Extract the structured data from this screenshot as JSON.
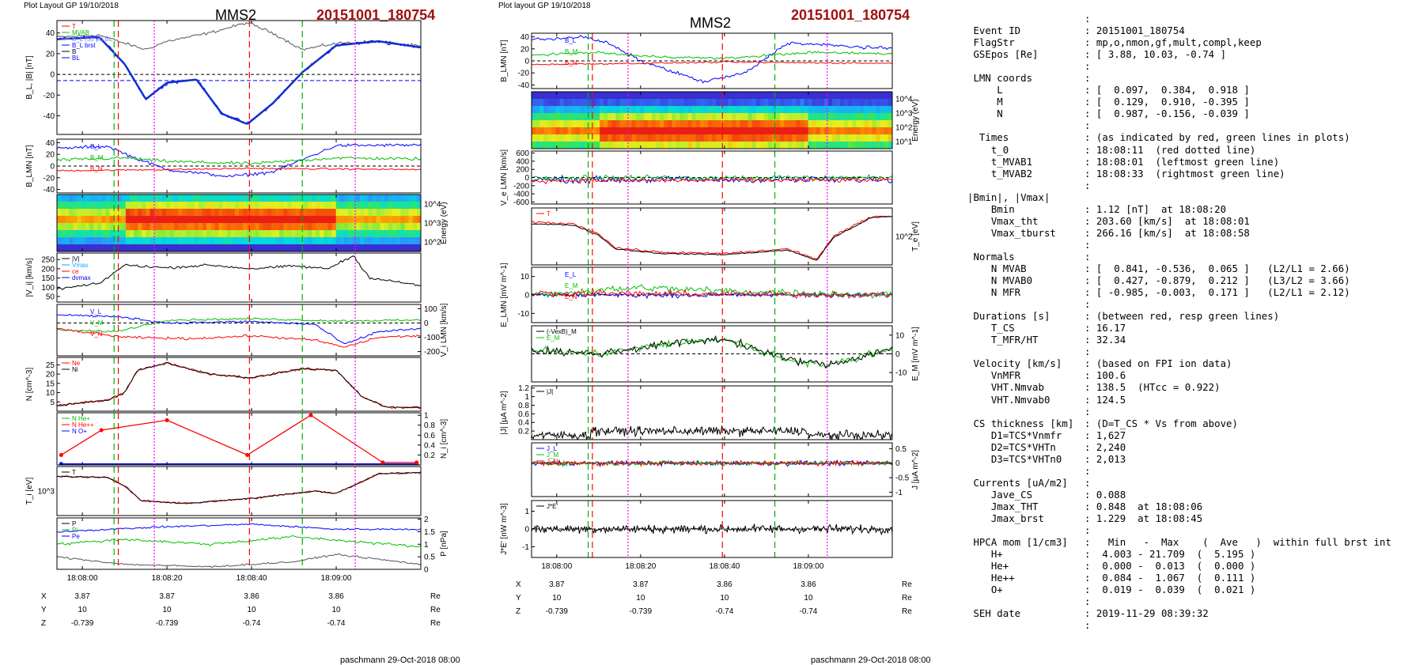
{
  "left_page": {
    "header_small": "Plot Layout GP 19/10/2018",
    "title": "MMS2",
    "event_id": "20151001_180754",
    "footer": "paschmann 29-Oct-2018 08:00"
  },
  "right_page": {
    "header_small": "Plot layout GP 19/10/2018",
    "title": "MMS2",
    "event_id": "20151001_180754",
    "footer": "paschmann 29-Oct-2018 08:00"
  },
  "time_axis": {
    "tick_times": [
      0,
      20,
      40,
      60
    ],
    "tick_labels": [
      "18:08:00",
      "18:08:20",
      "18:08:40",
      "18:09:00"
    ],
    "range_seconds_after_18_07_54": [
      -6,
      80
    ]
  },
  "position_table": {
    "rows": [
      {
        "label": "X",
        "values": [
          "3.87",
          "3.87",
          "3.86",
          "3.86"
        ],
        "unit": "Re"
      },
      {
        "label": "Y",
        "values": [
          "10",
          "10",
          "10",
          "10"
        ],
        "unit": "Re"
      },
      {
        "label": "Z",
        "values": [
          "-0.739",
          "-0.739",
          "-0.74",
          "-0.74"
        ],
        "unit": "Re"
      }
    ]
  },
  "marker_lines": {
    "red_dashed_s": [
      8.5,
      39.5
    ],
    "green_dashed_s": [
      7.5,
      52.0
    ],
    "magenta_dotted_s": [
      17.0,
      64.5
    ],
    "colors": {
      "red": "#ff0000",
      "green": "#00b000",
      "magenta": "#ff00ff"
    }
  },
  "chart_data": [
    {
      "type": "line",
      "panel": "B_L, |B|",
      "ylabel": "B_L, |B| [nT]",
      "yticks": [
        40,
        20,
        0,
        -20,
        -40
      ],
      "ylim": [
        -58,
        52
      ],
      "legend": [
        "T",
        "MVAB",
        "B_L (50 pt) BL",
        "B_L brst",
        "B",
        "BL"
      ],
      "notable": {
        "B_min": -48,
        "B_max": 52
      }
    },
    {
      "type": "line",
      "panel": "B_LMN",
      "ylabel": "B_LMN [nT]",
      "yticks": [
        40,
        20,
        0,
        -20,
        -40
      ],
      "ylim": [
        -46,
        46
      ],
      "series_labels": [
        "B_L",
        "B_M",
        "B_N"
      ]
    },
    {
      "type": "heatmap",
      "panel": "ion energy spectrogram",
      "ylabel": "Energy (eV)",
      "yticks": [
        "10^4",
        "10^3",
        "10^2"
      ]
    },
    {
      "type": "line",
      "panel": "|V_i|",
      "ylabel": "|V_i| [km/s]",
      "yticks": [
        250,
        200,
        150,
        100,
        50
      ],
      "ylim": [
        20,
        285
      ],
      "legend": [
        "|V|",
        "Vmax",
        "ce",
        "dvmax"
      ]
    },
    {
      "type": "line",
      "panel": "V_i LMN",
      "ylabel": "V_i LMN [km/s]",
      "yticks": [
        100,
        0,
        -100,
        -200
      ],
      "ylim": [
        -230,
        130
      ],
      "series_labels": [
        "V_L",
        "V_M",
        "V_N"
      ]
    },
    {
      "type": "line",
      "panel": "N",
      "ylabel": "N [cm^-3]",
      "yticks": [
        25,
        20,
        15,
        10,
        5
      ],
      "ylim": [
        0,
        29
      ],
      "legend": [
        "Ne",
        "Ni"
      ]
    },
    {
      "type": "line",
      "panel": "N_i HPCA",
      "ylabel": "N_i [cm^-3]",
      "yticks": [
        1.0,
        0.8,
        0.6,
        0.4,
        0.2
      ],
      "ylim": [
        0,
        1.05
      ],
      "legend": [
        "N He+",
        "N He++",
        "N O+"
      ],
      "series": [
        {
          "name": "N He++",
          "x": [
            -5,
            4.5,
            20,
            39,
            54,
            71,
            79
          ],
          "values": [
            0.2,
            0.7,
            0.9,
            0.2,
            1.0,
            0.05,
            0.05
          ]
        },
        {
          "name": "N O+",
          "x": [
            -5,
            79
          ],
          "values": [
            0.02,
            0.02
          ]
        },
        {
          "name": "N He+",
          "x": [
            -5,
            79
          ],
          "values": [
            0.0,
            0.0
          ]
        }
      ]
    },
    {
      "type": "line",
      "panel": "T_i",
      "ylabel": "T_i [eV]",
      "yticks": [
        "10^3"
      ],
      "legend": [
        "T"
      ]
    },
    {
      "type": "line",
      "panel": "P",
      "ylabel": "P [nPa]",
      "yticks": [
        2.0,
        1.5,
        1.0,
        0.5,
        0.0
      ],
      "ylim": [
        0,
        2.05
      ],
      "legend": [
        "P",
        "Pi",
        "Pe"
      ]
    },
    {
      "type": "line",
      "panel": "B_LMN (right)",
      "ylabel": "B_LMN [nT]",
      "yticks": [
        40,
        20,
        0,
        -20,
        -40
      ],
      "ylim": [
        -46,
        46
      ],
      "series_labels": [
        "B_L",
        "B_M",
        "B_N"
      ]
    },
    {
      "type": "heatmap",
      "panel": "electron energy spectrogram",
      "ylabel": "Energy (eV)",
      "yticks": [
        "10^4",
        "10^3",
        "10^2",
        "10^1"
      ]
    },
    {
      "type": "line",
      "panel": "V_e LMN",
      "ylabel": "V_e LMN [km/s]",
      "yticks": [
        600,
        400,
        200,
        0,
        -200,
        -400,
        -600
      ],
      "ylim": [
        -650,
        650
      ]
    },
    {
      "type": "line",
      "panel": "T_e",
      "ylabel": "T_e [eV]",
      "yticks": [
        "10^2"
      ],
      "legend": [
        "T"
      ]
    },
    {
      "type": "line",
      "panel": "E_LMN",
      "ylabel": "E_LMN [mV m^-1]",
      "yticks": [
        10,
        0,
        -10
      ],
      "ylim": [
        -15,
        15
      ],
      "series_labels": [
        "E_L",
        "E_M",
        "E_N"
      ]
    },
    {
      "type": "line",
      "panel": "E_M",
      "ylabel": "E_M [mV m^-1]",
      "yticks": [
        10,
        0,
        -10
      ],
      "ylim": [
        -15,
        15
      ],
      "legend": [
        "(-VexB)_M",
        "E_M"
      ]
    },
    {
      "type": "line",
      "panel": "|J|",
      "ylabel": "|J| [µA m^-2]",
      "yticks": [
        1.2,
        1.0,
        0.8,
        0.6,
        0.4,
        0.2
      ],
      "ylim": [
        0,
        1.25
      ],
      "legend": [
        "|J|"
      ]
    },
    {
      "type": "line",
      "panel": "J LMN",
      "ylabel": "J [µA m^-2]",
      "yticks": [
        0.5,
        0.0,
        -0.5,
        -1.0
      ],
      "ylim": [
        -1.15,
        0.7
      ],
      "legend": [
        "J_L",
        "J_M",
        "J_N"
      ]
    },
    {
      "type": "line",
      "panel": "J*E'",
      "ylabel": "J*E' [nW m^-3]",
      "yticks": [
        1,
        0,
        -1
      ],
      "ylim": [
        -1.6,
        1.6
      ],
      "legend": [
        "J*E'"
      ]
    }
  ],
  "info_panel": {
    "rows": [
      {
        "label": "",
        "value": ":"
      },
      {
        "label": " Event ID",
        "value": ": 20151001_180754"
      },
      {
        "label": " FlagStr",
        "value": ": mp,o,nmon,gf,mult,compl,keep"
      },
      {
        "label": " GSEpos [Re]",
        "value": ": [ 3.88, 10.03, -0.74 ]"
      },
      {
        "label": "",
        "value": ":"
      },
      {
        "label": " LMN coords",
        "value": ":"
      },
      {
        "label": "     L",
        "value": ": [  0.097,  0.384,  0.918 ]"
      },
      {
        "label": "     M",
        "value": ": [  0.129,  0.910, -0.395 ]"
      },
      {
        "label": "     N",
        "value": ": [  0.987, -0.156, -0.039 ]"
      },
      {
        "label": "",
        "value": ":"
      },
      {
        "label": "  Times",
        "value": ": (as indicated by red, green lines in plots)"
      },
      {
        "label": "    t_0",
        "value": ": 18:08:11  (red dotted line)"
      },
      {
        "label": "    t_MVAB1",
        "value": ": 18:08:01  (leftmost green line)"
      },
      {
        "label": "    t_MVAB2",
        "value": ": 18:08:33  (rightmost green line)"
      },
      {
        "label": "",
        "value": ":"
      },
      {
        "label": "|Bmin|, |Vmax|",
        "value": ""
      },
      {
        "label": "    Bmin",
        "value": ": 1.12 [nT]  at 18:08:20"
      },
      {
        "label": "    Vmax_tht",
        "value": ": 203.60 [km/s]  at 18:08:01"
      },
      {
        "label": "    Vmax_tburst",
        "value": ": 266.16 [km/s]  at 18:08:58"
      },
      {
        "label": "",
        "value": ":"
      },
      {
        "label": " Normals",
        "value": ":"
      },
      {
        "label": "    N MVAB",
        "value": ": [  0.841, -0.536,  0.065 ]   (L2/L1 = 2.66)"
      },
      {
        "label": "    N MVAB0",
        "value": ": [  0.427, -0.879,  0.212 ]   (L3/L2 = 3.66)"
      },
      {
        "label": "    N MFR",
        "value": ": [ -0.985, -0.003,  0.171 ]   (L2/L1 = 2.12)"
      },
      {
        "label": "",
        "value": ":"
      },
      {
        "label": " Durations [s]",
        "value": ": (between red, resp green lines)"
      },
      {
        "label": "    T_CS",
        "value": ": 16.17"
      },
      {
        "label": "    T_MFR/HT",
        "value": ": 32.34"
      },
      {
        "label": "",
        "value": ":"
      },
      {
        "label": " Velocity [km/s]",
        "value": ": (based on FPI ion data)"
      },
      {
        "label": "    VnMFR",
        "value": ": 100.6"
      },
      {
        "label": "    VHT.Nmvab",
        "value": ": 138.5  (HTcc = 0.922)"
      },
      {
        "label": "    VHT.Nmvab0",
        "value": ": 124.5"
      },
      {
        "label": "",
        "value": ":"
      },
      {
        "label": " CS thickness [km]",
        "value": ": (D=T_CS * Vs from above)"
      },
      {
        "label": "    D1=TCS*Vnmfr",
        "value": ": 1,627"
      },
      {
        "label": "    D2=TCS*VHTn",
        "value": ": 2,240"
      },
      {
        "label": "    D3=TCS*VHTn0",
        "value": ": 2,013"
      },
      {
        "label": "",
        "value": ":"
      },
      {
        "label": " Currents [uA/m2]",
        "value": ":"
      },
      {
        "label": "    Jave_CS",
        "value": ": 0.088"
      },
      {
        "label": "    Jmax_THT",
        "value": ": 0.848  at 18:08:06"
      },
      {
        "label": "    Jmax_brst",
        "value": ": 1.229  at 18:08:45"
      },
      {
        "label": "",
        "value": ":"
      },
      {
        "label": " HPCA mom [1/cm3]",
        "value": ":   Min   -  Max    (  Ave   )  within full brst int"
      },
      {
        "label": "    H+",
        "value": ":  4.003 - 21.709  (  5.195 )"
      },
      {
        "label": "    He+",
        "value": ":  0.000 -  0.013  (  0.000 )"
      },
      {
        "label": "    He++",
        "value": ":  0.084 -  1.067  (  0.111 )"
      },
      {
        "label": "    O+",
        "value": ":  0.019 -  0.039  (  0.021 )"
      },
      {
        "label": "",
        "value": ":"
      },
      {
        "label": " SEH date",
        "value": ": 2019-11-29 08:39:32"
      },
      {
        "label": "",
        "value": ":"
      }
    ]
  }
}
